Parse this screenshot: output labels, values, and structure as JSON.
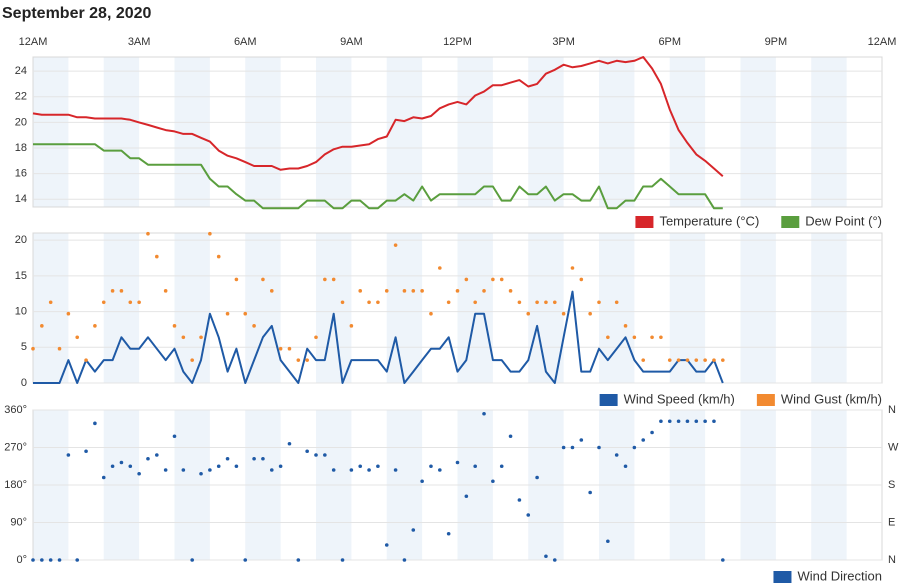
{
  "title": "September 28, 2020",
  "xlim": [
    0,
    1440
  ],
  "xticks": [
    {
      "value": 0,
      "label": "12AM"
    },
    {
      "value": 180,
      "label": "3AM"
    },
    {
      "value": 360,
      "label": "6AM"
    },
    {
      "value": 540,
      "label": "9AM"
    },
    {
      "value": 720,
      "label": "12PM"
    },
    {
      "value": 900,
      "label": "3PM"
    },
    {
      "value": 1080,
      "label": "6PM"
    },
    {
      "value": 1260,
      "label": "9PM"
    },
    {
      "value": 1440,
      "label": "12AM"
    }
  ],
  "x": [
    0,
    15,
    30,
    45,
    60,
    75,
    90,
    105,
    120,
    135,
    150,
    165,
    180,
    195,
    210,
    225,
    240,
    255,
    270,
    285,
    300,
    315,
    330,
    345,
    360,
    375,
    390,
    405,
    420,
    435,
    450,
    465,
    480,
    495,
    510,
    525,
    540,
    555,
    570,
    585,
    600,
    615,
    630,
    645,
    660,
    675,
    690,
    705,
    720,
    735,
    750,
    765,
    780,
    795,
    810,
    825,
    840,
    855,
    870,
    885,
    900,
    915,
    930,
    945,
    960,
    975,
    990,
    1005,
    1020,
    1035,
    1050,
    1065,
    1080,
    1095,
    1110,
    1125,
    1140,
    1155,
    1170
  ],
  "chart_data": [
    {
      "type": "line",
      "ylim": [
        13.4,
        25.1
      ],
      "yticks": [
        14,
        16,
        18,
        20,
        22,
        24
      ],
      "grid": true,
      "series": [
        {
          "name": "Temperature (°C)",
          "color": "#d7262a",
          "type": "line",
          "values": [
            20.7,
            20.6,
            20.6,
            20.6,
            20.6,
            20.4,
            20.4,
            20.3,
            20.3,
            20.3,
            20.3,
            20.2,
            20.0,
            19.8,
            19.6,
            19.4,
            19.3,
            19.1,
            19.1,
            18.8,
            18.5,
            17.8,
            17.4,
            17.2,
            16.9,
            16.6,
            16.6,
            16.6,
            16.3,
            16.4,
            16.4,
            16.6,
            16.9,
            17.5,
            17.9,
            18.1,
            18.1,
            18.2,
            18.3,
            18.7,
            18.9,
            20.2,
            20.1,
            20.4,
            20.3,
            20.5,
            21.1,
            21.4,
            21.6,
            21.4,
            22.1,
            22.4,
            22.9,
            22.9,
            23.1,
            23.3,
            22.8,
            23.0,
            23.8,
            24.1,
            24.5,
            24.3,
            24.4,
            24.6,
            24.8,
            24.6,
            24.8,
            24.7,
            24.8,
            25.1,
            24.2,
            23.0,
            21.0,
            19.4,
            18.4,
            17.5,
            17.0,
            16.4,
            15.8
          ]
        },
        {
          "name": "Dew Point (°)",
          "color": "#5a9e3e",
          "type": "line",
          "values": [
            18.3,
            18.3,
            18.3,
            18.3,
            18.3,
            18.3,
            18.3,
            18.3,
            17.8,
            17.8,
            17.8,
            17.2,
            17.2,
            16.7,
            16.7,
            16.7,
            16.7,
            16.7,
            16.7,
            16.7,
            15.6,
            15.0,
            15.0,
            14.4,
            13.9,
            13.9,
            13.3,
            13.3,
            13.3,
            13.3,
            13.3,
            13.9,
            13.9,
            13.9,
            13.3,
            13.3,
            13.9,
            13.9,
            13.3,
            13.3,
            13.9,
            13.9,
            14.4,
            13.9,
            15.0,
            13.9,
            14.4,
            14.4,
            14.4,
            14.4,
            14.4,
            15.0,
            15.0,
            13.9,
            13.9,
            15.0,
            14.4,
            14.4,
            15.0,
            13.9,
            14.4,
            14.4,
            13.9,
            13.9,
            15.0,
            13.3,
            13.3,
            13.9,
            13.9,
            15.0,
            15.0,
            15.6,
            15.0,
            14.4,
            14.4,
            14.4,
            14.4,
            13.3,
            13.3
          ]
        }
      ]
    },
    {
      "type": "line",
      "ylim": [
        0,
        21
      ],
      "yticks": [
        0,
        5,
        10,
        15,
        20
      ],
      "grid": true,
      "series": [
        {
          "name": "Wind Speed (km/h)",
          "color": "#1f5aa6",
          "type": "line",
          "values": [
            0,
            0,
            0,
            0,
            3.2,
            0,
            3.2,
            1.6,
            3.2,
            3.2,
            6.4,
            4.8,
            4.8,
            6.4,
            4.8,
            3.2,
            4.8,
            1.6,
            0,
            3.2,
            9.7,
            6.4,
            1.6,
            4.8,
            0,
            3.2,
            6.4,
            8.0,
            3.2,
            1.6,
            0,
            4.8,
            3.2,
            3.2,
            9.7,
            0,
            3.2,
            3.2,
            3.2,
            3.2,
            1.6,
            6.4,
            0,
            1.6,
            3.2,
            4.8,
            4.8,
            6.4,
            1.6,
            3.2,
            9.7,
            9.7,
            3.2,
            3.2,
            1.6,
            1.6,
            3.2,
            8.0,
            1.6,
            0,
            6.4,
            12.8,
            1.6,
            1.6,
            4.8,
            3.2,
            4.8,
            6.4,
            3.2,
            1.6,
            1.6,
            1.6,
            1.6,
            3.2,
            3.2,
            1.6,
            1.6,
            3.2,
            0
          ]
        },
        {
          "name": "Wind Gust (km/h)",
          "color": "#f28a30",
          "type": "scatter",
          "values": [
            4.8,
            8.0,
            11.3,
            4.8,
            9.7,
            6.4,
            3.2,
            8.0,
            11.3,
            12.9,
            12.9,
            11.3,
            11.3,
            20.9,
            17.7,
            12.9,
            8.0,
            6.4,
            3.2,
            6.4,
            20.9,
            17.7,
            9.7,
            14.5,
            9.7,
            8.0,
            14.5,
            12.9,
            4.8,
            4.8,
            3.2,
            3.2,
            6.4,
            14.5,
            14.5,
            11.3,
            8.0,
            12.9,
            11.3,
            11.3,
            12.9,
            19.3,
            12.9,
            12.9,
            12.9,
            9.7,
            16.1,
            11.3,
            12.9,
            14.5,
            11.3,
            12.9,
            14.5,
            14.5,
            12.9,
            11.3,
            9.7,
            11.3,
            11.3,
            11.3,
            9.7,
            16.1,
            14.5,
            9.7,
            11.3,
            6.4,
            11.3,
            8.0,
            6.4,
            3.2,
            6.4,
            6.4,
            3.2,
            3.2,
            3.2,
            3.2,
            3.2,
            3.2,
            3.2
          ]
        }
      ]
    },
    {
      "type": "scatter",
      "ylim": [
        0,
        360
      ],
      "yticks": [
        {
          "value": 0,
          "label": "0°"
        },
        {
          "value": 90,
          "label": "90°"
        },
        {
          "value": 180,
          "label": "180°"
        },
        {
          "value": 270,
          "label": "270°"
        },
        {
          "value": 360,
          "label": "360°"
        }
      ],
      "y2lim": [
        0,
        360
      ],
      "y2ticks": [
        {
          "value": 0,
          "label": "N"
        },
        {
          "value": 90,
          "label": "E"
        },
        {
          "value": 180,
          "label": "S"
        },
        {
          "value": 270,
          "label": "W"
        },
        {
          "value": 360,
          "label": "N"
        }
      ],
      "grid": true,
      "series": [
        {
          "name": "Wind Direction",
          "color": "#1f5aa6",
          "type": "scatter",
          "values": [
            0,
            0,
            0,
            0,
            252,
            0,
            261,
            328,
            198,
            225,
            234,
            225,
            207,
            243,
            252,
            216,
            297,
            216,
            0,
            207,
            216,
            225,
            243,
            225,
            0,
            243,
            243,
            216,
            225,
            279,
            0,
            261,
            252,
            252,
            216,
            0,
            216,
            225,
            216,
            225,
            36,
            216,
            0,
            72,
            189,
            225,
            216,
            63,
            234,
            153,
            225,
            351,
            189,
            225,
            297,
            144,
            108,
            198,
            9,
            0,
            270,
            270,
            288,
            162,
            270,
            45,
            252,
            225,
            270,
            288,
            306,
            333,
            333,
            333,
            333,
            333,
            333,
            333,
            0
          ]
        }
      ]
    }
  ]
}
